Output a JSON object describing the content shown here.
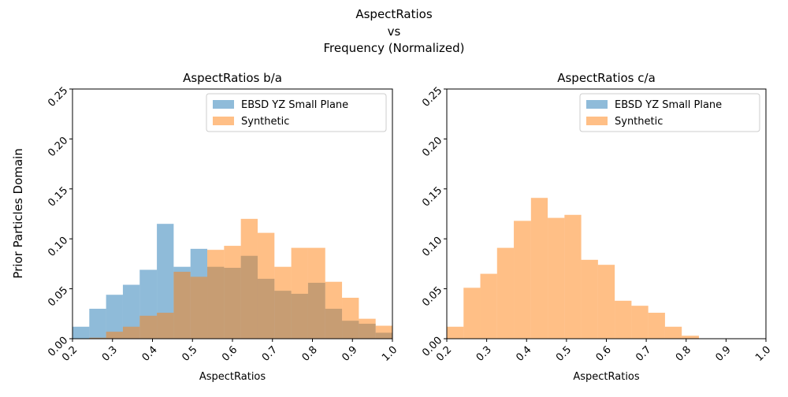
{
  "figure": {
    "suptitle_lines": [
      "AspectRatios",
      "vs",
      "Frequency (Normalized)"
    ],
    "ylabel": "Prior Particles Domain"
  },
  "colors": {
    "ebsd": "#1f77b4",
    "synthetic": "#ff7f0e",
    "bar_alpha": 0.5
  },
  "chart_data": [
    {
      "type": "bar",
      "title": "AspectRatios b/a",
      "xlabel": "AspectRatios",
      "ylabel": "",
      "xlim": [
        0.2,
        1.0
      ],
      "ylim": [
        0.0,
        0.25
      ],
      "xticks": [
        "0.2",
        "0.3",
        "0.4",
        "0.5",
        "0.6",
        "0.7",
        "0.8",
        "0.9",
        "1.0"
      ],
      "yticks": [
        "0.00",
        "0.05",
        "0.10",
        "0.15",
        "0.20",
        "0.25"
      ],
      "legend": "top-right",
      "grid": false,
      "bin_edges": [
        0.2,
        0.242,
        0.284,
        0.326,
        0.368,
        0.411,
        0.453,
        0.495,
        0.537,
        0.579,
        0.621,
        0.663,
        0.705,
        0.747,
        0.789,
        0.832,
        0.874,
        0.916,
        0.958,
        1.0
      ],
      "series": [
        {
          "name": "EBSD YZ Small Plane",
          "color_key": "ebsd",
          "values": [
            0.012,
            0.03,
            0.044,
            0.054,
            0.069,
            0.115,
            0.072,
            0.09,
            0.072,
            0.071,
            0.083,
            0.06,
            0.048,
            0.045,
            0.056,
            0.03,
            0.018,
            0.015,
            0.006
          ]
        },
        {
          "name": "Synthetic",
          "color_key": "synthetic",
          "values": [
            0.0,
            0.001,
            0.007,
            0.012,
            0.023,
            0.026,
            0.067,
            0.062,
            0.089,
            0.093,
            0.12,
            0.106,
            0.072,
            0.091,
            0.091,
            0.057,
            0.041,
            0.02,
            0.013
          ]
        }
      ]
    },
    {
      "type": "bar",
      "title": "AspectRatios c/a",
      "xlabel": "AspectRatios",
      "ylabel": "",
      "xlim": [
        0.2,
        1.0
      ],
      "ylim": [
        0.0,
        0.25
      ],
      "xticks": [
        "0.2",
        "0.3",
        "0.4",
        "0.5",
        "0.6",
        "0.7",
        "0.8",
        "0.9",
        "1.0"
      ],
      "yticks": [
        "0.00",
        "0.05",
        "0.10",
        "0.15",
        "0.20",
        "0.25"
      ],
      "legend": "top-right",
      "grid": false,
      "bin_edges": [
        0.2,
        0.242,
        0.284,
        0.326,
        0.368,
        0.411,
        0.453,
        0.495,
        0.537,
        0.579,
        0.621,
        0.663,
        0.705,
        0.747,
        0.789,
        0.832
      ],
      "series": [
        {
          "name": "EBSD YZ Small Plane",
          "color_key": "ebsd",
          "values": []
        },
        {
          "name": "Synthetic",
          "color_key": "synthetic",
          "values": [
            0.012,
            0.051,
            0.065,
            0.091,
            0.118,
            0.141,
            0.121,
            0.124,
            0.079,
            0.074,
            0.038,
            0.033,
            0.026,
            0.012,
            0.003
          ]
        }
      ]
    }
  ]
}
